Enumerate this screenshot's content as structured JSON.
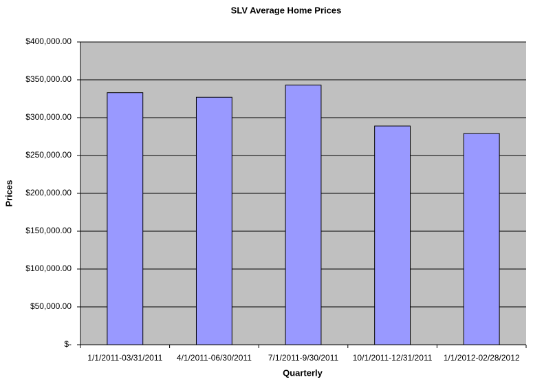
{
  "chart_data": {
    "type": "bar",
    "title": "SLV Average Home Prices",
    "x_label": "Quarterly",
    "y_label": "Prices",
    "categories": [
      "1/1/2011-03/31/2011",
      "4/1/2011-06/30/2011",
      "7/1/2011-9/30/2011",
      "10/1/2011-12/31/2011",
      "1/1/2012-02/28/2012"
    ],
    "values": [
      333000,
      327000,
      343000,
      289000,
      279000
    ],
    "color": "#9999ff",
    "ylim": [
      0,
      400000
    ],
    "yticks": [
      {
        "value": 0,
        "label": "$-"
      },
      {
        "value": 50000,
        "label": "$50,000.00"
      },
      {
        "value": 100000,
        "label": "$100,000.00"
      },
      {
        "value": 150000,
        "label": "$150,000.00"
      },
      {
        "value": 200000,
        "label": "$200,000.00"
      },
      {
        "value": 250000,
        "label": "$250,000.00"
      },
      {
        "value": 300000,
        "label": "$300,000.00"
      },
      {
        "value": 350000,
        "label": "$350,000.00"
      },
      {
        "value": 400000,
        "label": "$400,000.00"
      }
    ],
    "grid": true
  }
}
